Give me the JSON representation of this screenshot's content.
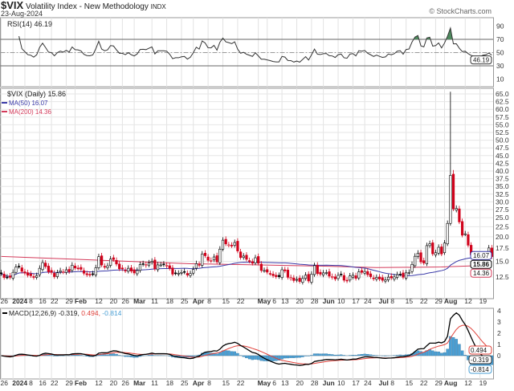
{
  "header": {
    "symbol": "$VIX",
    "name": "Volatility Index - New Methodology",
    "exchange": "INDX",
    "date": "23-Aug-2024",
    "watermark": "© StockCharts.com"
  },
  "colors": {
    "up": "#000000",
    "down": "#d0021b",
    "ma50": "#3a3aa8",
    "ma200": "#d43a5a",
    "macd": "#000000",
    "signal": "#e0413a",
    "histogram": "#4a9fd4",
    "rsi_fill": "#4e8a5e"
  },
  "chart_data": [
    {
      "type": "line",
      "legend": "RSI(14) 46.19",
      "last_value_tag": "46.19",
      "ylim": [
        0,
        100
      ],
      "yticks": [
        10,
        30,
        50,
        70,
        90
      ],
      "reference_lines": [
        30,
        50,
        70
      ]
    },
    {
      "type": "candlestick",
      "scale": "log",
      "legend": {
        "price": "$VIX (Daily) 15.86",
        "ma50": "MA(50) 16.07",
        "ma200": "MA(200) 14.36"
      },
      "tags": {
        "close": "15.86",
        "ma50": "16.07",
        "ma200": "14.36"
      },
      "ylim": [
        11.5,
        66
      ],
      "yticks": [
        "12.5",
        "15.0",
        "17.5",
        "20.0",
        "22.5",
        "25.0",
        "27.5",
        "30.0",
        "32.5",
        "35.0",
        "37.5",
        "40.0",
        "42.5",
        "45.0",
        "47.5",
        "50.0",
        "52.5",
        "55.0",
        "57.5",
        "60.0",
        "62.5",
        "65.0"
      ],
      "spike": {
        "date": "2024-08-05",
        "high": 65.73
      },
      "closes": [
        [
          "2023-12-26",
          12.99
        ],
        [
          "2023-12-27",
          12.43
        ],
        [
          "2023-12-28",
          12.47
        ],
        [
          "2023-12-29",
          12.45
        ],
        [
          "2024-01-02",
          13.2
        ],
        [
          "2024-01-03",
          14.04
        ],
        [
          "2024-01-04",
          14.13
        ],
        [
          "2024-01-05",
          13.35
        ],
        [
          "2024-01-08",
          13.08
        ],
        [
          "2024-01-09",
          12.76
        ],
        [
          "2024-01-10",
          12.69
        ],
        [
          "2024-01-11",
          12.44
        ],
        [
          "2024-01-12",
          12.7
        ],
        [
          "2024-01-16",
          13.84
        ],
        [
          "2024-01-17",
          14.79
        ],
        [
          "2024-01-18",
          14.13
        ],
        [
          "2024-01-19",
          13.3
        ],
        [
          "2024-01-22",
          13.19
        ],
        [
          "2024-01-23",
          12.55
        ],
        [
          "2024-01-24",
          13.14
        ],
        [
          "2024-01-25",
          13.45
        ],
        [
          "2024-01-26",
          13.26
        ],
        [
          "2024-01-29",
          13.6
        ],
        [
          "2024-01-30",
          13.31
        ],
        [
          "2024-01-31",
          14.35
        ],
        [
          "2024-02-01",
          13.88
        ],
        [
          "2024-02-02",
          13.85
        ],
        [
          "2024-02-05",
          13.67
        ],
        [
          "2024-02-06",
          13.06
        ],
        [
          "2024-02-07",
          12.83
        ],
        [
          "2024-02-08",
          12.79
        ],
        [
          "2024-02-09",
          12.93
        ],
        [
          "2024-02-12",
          13.93
        ],
        [
          "2024-02-13",
          15.85
        ],
        [
          "2024-02-14",
          14.38
        ],
        [
          "2024-02-15",
          14.01
        ],
        [
          "2024-02-16",
          14.24
        ],
        [
          "2024-02-20",
          15.42
        ],
        [
          "2024-02-21",
          15.34
        ],
        [
          "2024-02-22",
          14.54
        ],
        [
          "2024-02-23",
          13.75
        ],
        [
          "2024-02-26",
          13.74
        ],
        [
          "2024-02-27",
          13.43
        ],
        [
          "2024-02-28",
          13.84
        ],
        [
          "2024-02-29",
          13.4
        ],
        [
          "2024-03-01",
          13.11
        ],
        [
          "2024-03-04",
          13.49
        ],
        [
          "2024-03-05",
          14.46
        ],
        [
          "2024-03-06",
          14.5
        ],
        [
          "2024-03-07",
          14.44
        ],
        [
          "2024-03-08",
          14.74
        ],
        [
          "2024-03-11",
          15.02
        ],
        [
          "2024-03-12",
          13.75
        ],
        [
          "2024-03-13",
          14.4
        ],
        [
          "2024-03-14",
          14.4
        ],
        [
          "2024-03-15",
          14.41
        ],
        [
          "2024-03-18",
          14.33
        ],
        [
          "2024-03-19",
          13.82
        ],
        [
          "2024-03-20",
          12.92
        ],
        [
          "2024-03-21",
          13.06
        ],
        [
          "2024-03-22",
          13.06
        ],
        [
          "2024-03-25",
          13.19
        ],
        [
          "2024-03-26",
          13.24
        ],
        [
          "2024-03-27",
          12.78
        ],
        [
          "2024-03-28",
          13.01
        ],
        [
          "2024-04-01",
          13.65
        ],
        [
          "2024-04-02",
          14.61
        ],
        [
          "2024-04-03",
          14.33
        ],
        [
          "2024-04-04",
          16.35
        ],
        [
          "2024-04-05",
          16.03
        ],
        [
          "2024-04-08",
          15.19
        ],
        [
          "2024-04-09",
          15.18
        ],
        [
          "2024-04-10",
          15.8
        ],
        [
          "2024-04-11",
          14.91
        ],
        [
          "2024-04-12",
          17.31
        ],
        [
          "2024-04-15",
          19.23
        ],
        [
          "2024-04-16",
          18.4
        ],
        [
          "2024-04-17",
          18.21
        ],
        [
          "2024-04-18",
          18.0
        ],
        [
          "2024-04-19",
          18.71
        ],
        [
          "2024-04-22",
          16.94
        ],
        [
          "2024-04-23",
          15.69
        ],
        [
          "2024-04-24",
          15.97
        ],
        [
          "2024-04-25",
          15.37
        ],
        [
          "2024-04-26",
          15.03
        ],
        [
          "2024-04-29",
          14.67
        ],
        [
          "2024-04-30",
          15.65
        ],
        [
          "2024-05-01",
          14.68
        ],
        [
          "2024-05-02",
          13.49
        ],
        [
          "2024-05-03",
          13.49
        ],
        [
          "2024-05-06",
          13.23
        ],
        [
          "2024-05-07",
          13.0
        ],
        [
          "2024-05-08",
          12.69
        ],
        [
          "2024-05-09",
          12.55
        ],
        [
          "2024-05-10",
          12.55
        ],
        [
          "2024-05-13",
          13.6
        ],
        [
          "2024-05-14",
          13.42
        ],
        [
          "2024-05-15",
          12.45
        ],
        [
          "2024-05-16",
          12.42
        ],
        [
          "2024-05-17",
          11.99
        ],
        [
          "2024-05-20",
          12.15
        ],
        [
          "2024-05-21",
          11.86
        ],
        [
          "2024-05-22",
          12.29
        ],
        [
          "2024-05-23",
          12.77
        ],
        [
          "2024-05-24",
          11.93
        ],
        [
          "2024-05-28",
          12.92
        ],
        [
          "2024-05-29",
          14.28
        ],
        [
          "2024-05-30",
          13.01
        ],
        [
          "2024-05-31",
          12.92
        ],
        [
          "2024-06-03",
          13.11
        ],
        [
          "2024-06-04",
          13.16
        ],
        [
          "2024-06-05",
          12.63
        ],
        [
          "2024-06-06",
          12.58
        ],
        [
          "2024-06-07",
          12.22
        ],
        [
          "2024-06-10",
          12.74
        ],
        [
          "2024-06-11",
          12.85
        ],
        [
          "2024-06-12",
          12.04
        ],
        [
          "2024-06-13",
          11.94
        ],
        [
          "2024-06-14",
          12.66
        ],
        [
          "2024-06-17",
          12.75
        ],
        [
          "2024-06-18",
          12.3
        ],
        [
          "2024-06-20",
          13.28
        ],
        [
          "2024-06-21",
          13.2
        ],
        [
          "2024-06-24",
          13.33
        ],
        [
          "2024-06-25",
          12.84
        ],
        [
          "2024-06-26",
          12.55
        ],
        [
          "2024-06-27",
          12.24
        ],
        [
          "2024-06-28",
          12.44
        ],
        [
          "2024-07-01",
          12.22
        ],
        [
          "2024-07-02",
          12.03
        ],
        [
          "2024-07-03",
          12.09
        ],
        [
          "2024-07-05",
          12.48
        ],
        [
          "2024-07-08",
          12.37
        ],
        [
          "2024-07-09",
          12.51
        ],
        [
          "2024-07-10",
          12.85
        ],
        [
          "2024-07-11",
          12.91
        ],
        [
          "2024-07-12",
          12.46
        ],
        [
          "2024-07-15",
          13.12
        ],
        [
          "2024-07-16",
          13.19
        ],
        [
          "2024-07-17",
          14.48
        ],
        [
          "2024-07-18",
          15.93
        ],
        [
          "2024-07-19",
          16.52
        ],
        [
          "2024-07-22",
          14.91
        ],
        [
          "2024-07-23",
          14.72
        ],
        [
          "2024-07-24",
          18.04
        ],
        [
          "2024-07-25",
          18.46
        ],
        [
          "2024-07-26",
          16.39
        ],
        [
          "2024-07-29",
          16.6
        ],
        [
          "2024-07-30",
          17.69
        ],
        [
          "2024-07-31",
          16.36
        ],
        [
          "2024-08-01",
          18.59
        ],
        [
          "2024-08-02",
          23.39
        ],
        [
          "2024-08-05",
          38.57
        ],
        [
          "2024-08-06",
          27.71
        ],
        [
          "2024-08-07",
          27.85
        ],
        [
          "2024-08-08",
          23.79
        ],
        [
          "2024-08-09",
          20.37
        ],
        [
          "2024-08-12",
          20.71
        ],
        [
          "2024-08-13",
          18.12
        ],
        [
          "2024-08-14",
          16.19
        ],
        [
          "2024-08-15",
          15.23
        ],
        [
          "2024-08-16",
          14.8
        ],
        [
          "2024-08-19",
          14.65
        ],
        [
          "2024-08-20",
          15.88
        ],
        [
          "2024-08-21",
          16.27
        ],
        [
          "2024-08-22",
          17.55
        ],
        [
          "2024-08-23",
          15.86
        ]
      ],
      "ma200": [
        [
          "2023-12-26",
          15.9
        ],
        [
          "2024-01-31",
          15.4
        ],
        [
          "2024-02-29",
          15.0
        ],
        [
          "2024-03-28",
          14.6
        ],
        [
          "2024-04-30",
          14.4
        ],
        [
          "2024-05-31",
          14.2
        ],
        [
          "2024-06-28",
          13.95
        ],
        [
          "2024-07-31",
          14.05
        ],
        [
          "2024-08-23",
          14.36
        ]
      ]
    },
    {
      "type": "line+bar",
      "legend": {
        "label": "MACD(12,26,9)",
        "macd": "-0.319",
        "signal": "0.494",
        "histogram": "-0.814"
      },
      "ylim": [
        -2,
        4.2
      ],
      "yticks": [
        1,
        2,
        3,
        4
      ],
      "zero_label": "0"
    }
  ],
  "x_axis": {
    "ticks": [
      [
        "2023-12-26",
        "26",
        false
      ],
      [
        "2024-01-02",
        "2024",
        true
      ],
      [
        "2024-01-08",
        "8",
        false
      ],
      [
        "2024-01-16",
        "16",
        false
      ],
      [
        "2024-01-22",
        "22",
        false
      ],
      [
        "2024-01-29",
        "29",
        false
      ],
      [
        "2024-02-01",
        "Feb",
        true
      ],
      [
        "2024-02-12",
        "12",
        false
      ],
      [
        "2024-02-20",
        "20",
        false
      ],
      [
        "2024-02-26",
        "26",
        false
      ],
      [
        "2024-03-01",
        "Mar",
        true
      ],
      [
        "2024-03-11",
        "11",
        false
      ],
      [
        "2024-03-18",
        "18",
        false
      ],
      [
        "2024-03-25",
        "25",
        false
      ],
      [
        "2024-04-01",
        "Apr",
        true
      ],
      [
        "2024-04-08",
        "8",
        false
      ],
      [
        "2024-04-15",
        "15",
        false
      ],
      [
        "2024-04-22",
        "22",
        false
      ],
      [
        "2024-05-01",
        "May",
        true
      ],
      [
        "2024-05-06",
        "6",
        false
      ],
      [
        "2024-05-13",
        "13",
        false
      ],
      [
        "2024-05-20",
        "20",
        false
      ],
      [
        "2024-05-28",
        "28",
        false
      ],
      [
        "2024-06-03",
        "Jun",
        true
      ],
      [
        "2024-06-10",
        "10",
        false
      ],
      [
        "2024-06-17",
        "17",
        false
      ],
      [
        "2024-06-24",
        "24",
        false
      ],
      [
        "2024-07-01",
        "Jul",
        true
      ],
      [
        "2024-07-08",
        "8",
        false
      ],
      [
        "2024-07-15",
        "15",
        false
      ],
      [
        "2024-07-22",
        "22",
        false
      ],
      [
        "2024-07-29",
        "29",
        false
      ],
      [
        "2024-08-01",
        "Aug",
        true
      ],
      [
        "2024-08-12",
        "12",
        false
      ],
      [
        "2024-08-19",
        "19",
        false
      ]
    ]
  }
}
